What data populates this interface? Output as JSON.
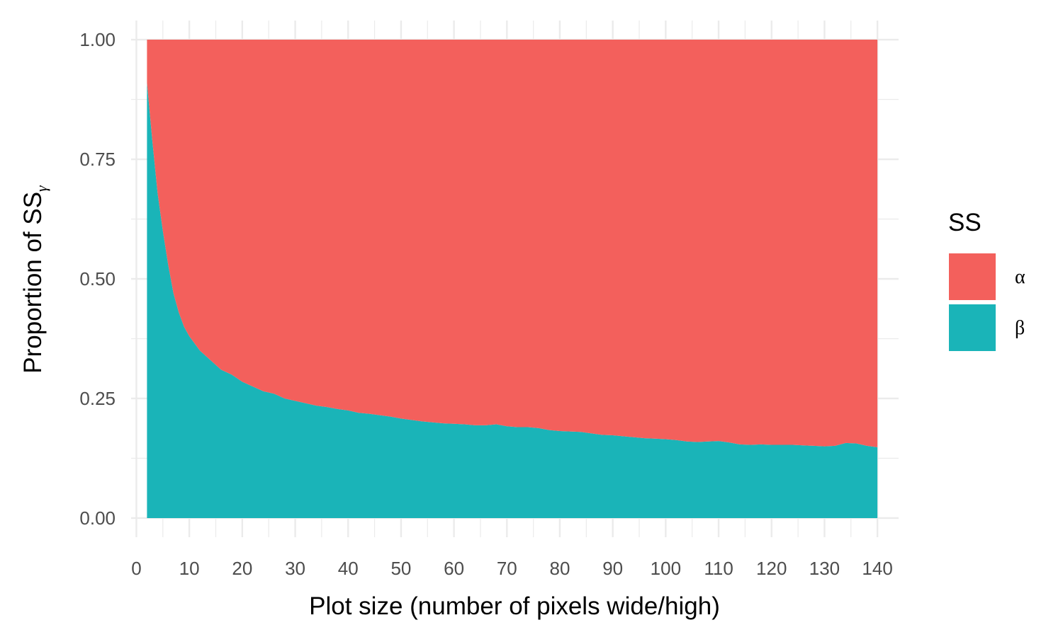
{
  "chart_data": {
    "type": "area",
    "stacked": true,
    "normalized": true,
    "ylabel_main": "Proportion of SS",
    "ylabel_sub": "γ",
    "xlabel": "Plot size (number of pixels wide/high)",
    "xlim": [
      -1,
      144
    ],
    "ylim": [
      -0.04,
      1.04
    ],
    "x_ticks": [
      0,
      10,
      20,
      30,
      40,
      50,
      60,
      70,
      80,
      90,
      100,
      110,
      120,
      130,
      140
    ],
    "y_ticks": [
      0,
      0.25,
      0.5,
      0.75,
      1
    ],
    "y_tick_labels": [
      "0.00",
      "0.25",
      "0.50",
      "0.75",
      "1.00"
    ],
    "grid": true,
    "legend": {
      "title": "SS",
      "position": "right",
      "entries": [
        {
          "key": "alpha",
          "label": "α",
          "color": "#F3605C"
        },
        {
          "key": "beta",
          "label": "β",
          "color": "#1AB4B8"
        }
      ]
    },
    "x": [
      2,
      3,
      4,
      5,
      6,
      7,
      8,
      9,
      10,
      12,
      14,
      16,
      18,
      20,
      22,
      24,
      26,
      28,
      30,
      32,
      34,
      36,
      38,
      40,
      42,
      44,
      46,
      48,
      50,
      52,
      54,
      56,
      58,
      60,
      62,
      64,
      66,
      68,
      70,
      72,
      74,
      76,
      78,
      80,
      82,
      84,
      86,
      88,
      90,
      92,
      94,
      96,
      98,
      100,
      102,
      104,
      106,
      108,
      110,
      112,
      114,
      116,
      118,
      120,
      122,
      124,
      126,
      128,
      130,
      132,
      134,
      136,
      138,
      140
    ],
    "series": [
      {
        "name": "β",
        "values": [
          0.91,
          0.79,
          0.68,
          0.6,
          0.53,
          0.47,
          0.43,
          0.4,
          0.38,
          0.35,
          0.33,
          0.31,
          0.3,
          0.285,
          0.275,
          0.265,
          0.26,
          0.25,
          0.245,
          0.24,
          0.235,
          0.232,
          0.228,
          0.225,
          0.22,
          0.218,
          0.215,
          0.212,
          0.208,
          0.205,
          0.202,
          0.2,
          0.198,
          0.197,
          0.196,
          0.194,
          0.194,
          0.196,
          0.192,
          0.19,
          0.19,
          0.188,
          0.184,
          0.182,
          0.181,
          0.18,
          0.177,
          0.174,
          0.173,
          0.171,
          0.169,
          0.167,
          0.166,
          0.165,
          0.163,
          0.16,
          0.159,
          0.16,
          0.161,
          0.158,
          0.154,
          0.153,
          0.154,
          0.153,
          0.153,
          0.153,
          0.152,
          0.151,
          0.15,
          0.151,
          0.157,
          0.156,
          0.151,
          0.148
        ]
      },
      {
        "name": "α",
        "values": [
          0.09,
          0.21,
          0.32,
          0.4,
          0.47,
          0.53,
          0.57,
          0.6,
          0.62,
          0.65,
          0.67,
          0.69,
          0.7,
          0.715,
          0.725,
          0.735,
          0.74,
          0.75,
          0.755,
          0.76,
          0.765,
          0.768,
          0.772,
          0.775,
          0.78,
          0.782,
          0.785,
          0.788,
          0.792,
          0.795,
          0.798,
          0.8,
          0.802,
          0.803,
          0.804,
          0.806,
          0.806,
          0.804,
          0.808,
          0.81,
          0.81,
          0.812,
          0.816,
          0.818,
          0.819,
          0.82,
          0.823,
          0.826,
          0.827,
          0.829,
          0.831,
          0.833,
          0.834,
          0.835,
          0.837,
          0.84,
          0.841,
          0.84,
          0.839,
          0.842,
          0.846,
          0.847,
          0.846,
          0.847,
          0.847,
          0.847,
          0.848,
          0.849,
          0.85,
          0.849,
          0.843,
          0.844,
          0.849,
          0.852
        ]
      }
    ]
  }
}
